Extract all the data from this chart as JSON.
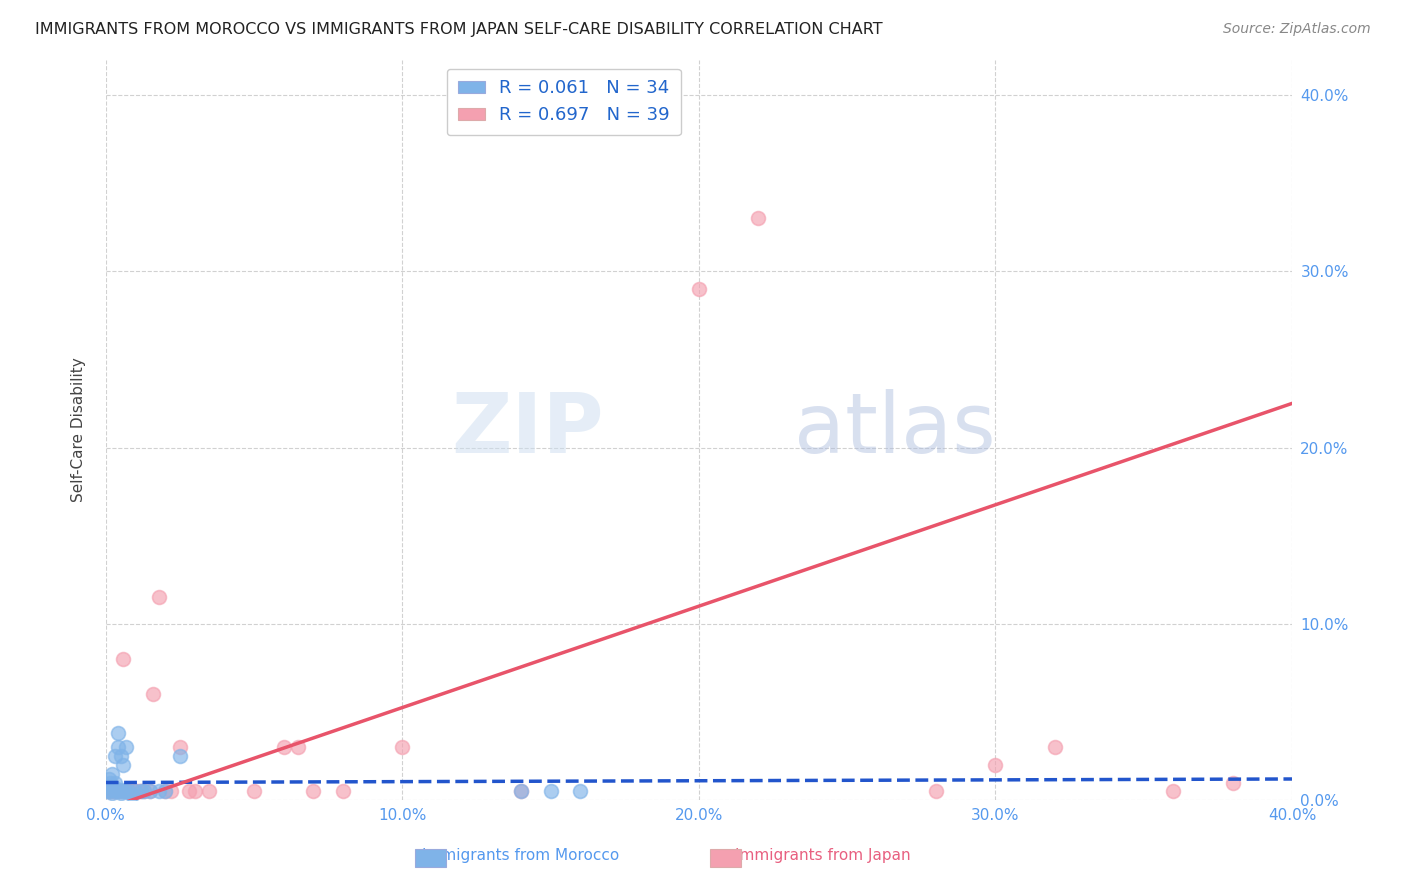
{
  "title": "IMMIGRANTS FROM MOROCCO VS IMMIGRANTS FROM JAPAN SELF-CARE DISABILITY CORRELATION CHART",
  "source": "Source: ZipAtlas.com",
  "ylabel": "Self-Care Disability",
  "xlim": [
    0.0,
    0.4
  ],
  "ylim": [
    0.0,
    0.42
  ],
  "xticks": [
    0.0,
    0.1,
    0.2,
    0.3,
    0.4
  ],
  "yticks": [
    0.0,
    0.1,
    0.2,
    0.3,
    0.4
  ],
  "xtick_labels": [
    "0.0%",
    "10.0%",
    "20.0%",
    "30.0%",
    "40.0%"
  ],
  "ytick_labels": [
    "0.0%",
    "10.0%",
    "20.0%",
    "30.0%",
    "40.0%"
  ],
  "morocco_color": "#7fb3e8",
  "japan_color": "#f4a0b0",
  "morocco_R": 0.061,
  "morocco_N": 34,
  "japan_R": 0.697,
  "japan_N": 39,
  "morocco_trend_color": "#2255cc",
  "japan_trend_color": "#e8546a",
  "grid_color": "#cccccc",
  "background_color": "#ffffff",
  "morocco_x": [
    0.0005,
    0.001,
    0.001,
    0.0015,
    0.0015,
    0.002,
    0.002,
    0.002,
    0.003,
    0.003,
    0.003,
    0.003,
    0.004,
    0.004,
    0.004,
    0.005,
    0.005,
    0.005,
    0.006,
    0.006,
    0.007,
    0.007,
    0.008,
    0.009,
    0.01,
    0.012,
    0.013,
    0.015,
    0.018,
    0.02,
    0.025,
    0.14,
    0.15,
    0.16
  ],
  "morocco_y": [
    0.005,
    0.008,
    0.012,
    0.005,
    0.01,
    0.004,
    0.007,
    0.015,
    0.005,
    0.007,
    0.01,
    0.025,
    0.005,
    0.03,
    0.038,
    0.004,
    0.006,
    0.025,
    0.005,
    0.02,
    0.005,
    0.03,
    0.005,
    0.003,
    0.005,
    0.005,
    0.005,
    0.005,
    0.005,
    0.005,
    0.025,
    0.005,
    0.005,
    0.005
  ],
  "japan_x": [
    0.001,
    0.001,
    0.002,
    0.003,
    0.003,
    0.004,
    0.005,
    0.006,
    0.007,
    0.007,
    0.008,
    0.009,
    0.01,
    0.011,
    0.012,
    0.013,
    0.015,
    0.016,
    0.018,
    0.02,
    0.022,
    0.025,
    0.028,
    0.03,
    0.035,
    0.05,
    0.06,
    0.065,
    0.07,
    0.08,
    0.1,
    0.14,
    0.2,
    0.22,
    0.28,
    0.3,
    0.32,
    0.36,
    0.38
  ],
  "japan_y": [
    0.005,
    0.005,
    0.005,
    0.005,
    0.005,
    0.005,
    0.005,
    0.08,
    0.005,
    0.005,
    0.005,
    0.005,
    0.005,
    0.005,
    0.005,
    0.005,
    0.005,
    0.06,
    0.115,
    0.005,
    0.005,
    0.03,
    0.005,
    0.005,
    0.005,
    0.005,
    0.03,
    0.03,
    0.005,
    0.005,
    0.03,
    0.005,
    0.29,
    0.33,
    0.005,
    0.02,
    0.03,
    0.005,
    0.01
  ],
  "morocco_trend_x": [
    0.0,
    0.4
  ],
  "morocco_trend_y": [
    0.01,
    0.012
  ],
  "japan_trend_x": [
    0.0,
    0.4
  ],
  "japan_trend_y": [
    -0.005,
    0.225
  ],
  "watermark_zip": "ZIP",
  "watermark_atlas": "atlas",
  "marker_size": 100
}
